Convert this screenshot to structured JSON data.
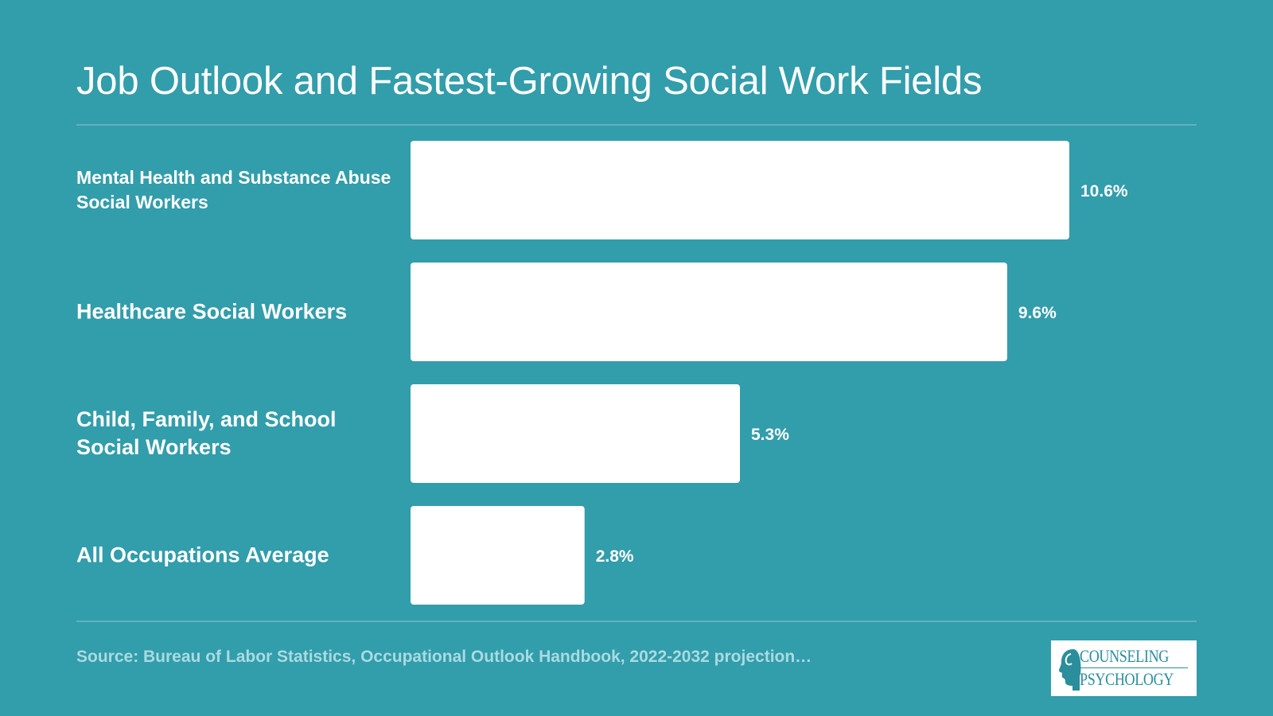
{
  "chart_data": {
    "type": "bar",
    "orientation": "horizontal",
    "title": "Job Outlook and Fastest-Growing Social Work Fields",
    "categories": [
      "Mental Health and Substance Abuse Social Workers",
      "Healthcare Social Workers",
      "Child, Family, and School Social Workers",
      "All Occupations Average"
    ],
    "values": [
      10.6,
      9.6,
      5.3,
      2.8
    ],
    "value_labels": [
      "10.6%",
      "9.6%",
      "5.3%",
      "2.8%"
    ],
    "unit": "%",
    "xlim": [
      0,
      10.6
    ],
    "grid": false,
    "bar_color": "#ffffff",
    "background_color": "#329dab"
  },
  "source": "Source: Bureau of Labor Statistics, Occupational Outlook Handbook, 2022-2032 projection…",
  "logo": {
    "line1": "COUNSELING",
    "line2": "PSYCHOLOGY"
  }
}
